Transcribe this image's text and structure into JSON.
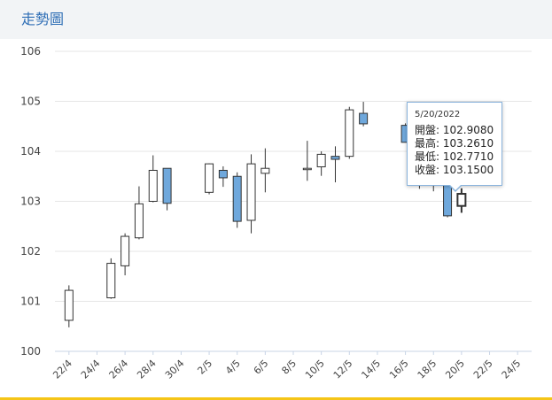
{
  "header": {
    "title": "走勢圖"
  },
  "tooltip": {
    "date": "5/20/2022",
    "open_label": "開盤: 102.9080",
    "high_label": "最高: 103.2610",
    "low_label": "最低: 102.7710",
    "close_label": "收盤: 103.1500"
  },
  "colors": {
    "up": "#ffffff",
    "down": "#6fa8dc",
    "wick": "#333333",
    "grid": "#e6e6e6",
    "title": "#2d6db5",
    "accent_line": "#f5c518"
  },
  "chart_data": {
    "type": "candlestick",
    "ylim": [
      100,
      106
    ],
    "yticks": [
      100,
      101,
      102,
      103,
      104,
      105,
      106
    ],
    "xlim_dates": [
      "2022-04-21",
      "2022-05-25"
    ],
    "xtick_labels": [
      "22/4",
      "24/4",
      "26/4",
      "28/4",
      "30/4",
      "2/5",
      "4/5",
      "6/5",
      "8/5",
      "10/5",
      "12/5",
      "14/5",
      "16/5",
      "18/5",
      "20/5",
      "22/5",
      "24/5"
    ],
    "xtick_dates": [
      "2022-04-22",
      "2022-04-24",
      "2022-04-26",
      "2022-04-28",
      "2022-04-30",
      "2022-05-02",
      "2022-05-04",
      "2022-05-06",
      "2022-05-08",
      "2022-05-10",
      "2022-05-12",
      "2022-05-14",
      "2022-05-16",
      "2022-05-18",
      "2022-05-20",
      "2022-05-22",
      "2022-05-24"
    ],
    "candles": [
      {
        "date": "2022-04-22",
        "open": 100.62,
        "high": 101.32,
        "low": 100.48,
        "close": 101.22
      },
      {
        "date": "2022-04-25",
        "open": 101.07,
        "high": 101.86,
        "low": 101.05,
        "close": 101.76
      },
      {
        "date": "2022-04-26",
        "open": 101.71,
        "high": 102.36,
        "low": 101.52,
        "close": 102.3
      },
      {
        "date": "2022-04-27",
        "open": 102.27,
        "high": 103.3,
        "low": 102.24,
        "close": 102.95
      },
      {
        "date": "2022-04-28",
        "open": 103.0,
        "high": 103.92,
        "low": 102.98,
        "close": 103.62
      },
      {
        "date": "2022-04-29",
        "open": 103.66,
        "high": 103.66,
        "low": 102.82,
        "close": 102.96
      },
      {
        "date": "2022-05-02",
        "open": 103.18,
        "high": 103.76,
        "low": 103.14,
        "close": 103.75
      },
      {
        "date": "2022-05-03",
        "open": 103.62,
        "high": 103.7,
        "low": 103.29,
        "close": 103.47
      },
      {
        "date": "2022-05-04",
        "open": 103.5,
        "high": 103.58,
        "low": 102.47,
        "close": 102.6
      },
      {
        "date": "2022-05-05",
        "open": 102.62,
        "high": 103.94,
        "low": 102.36,
        "close": 103.75
      },
      {
        "date": "2022-05-06",
        "open": 103.56,
        "high": 104.06,
        "low": 103.18,
        "close": 103.66
      },
      {
        "date": "2022-05-09",
        "open": 103.65,
        "high": 104.21,
        "low": 103.41,
        "close": 103.66
      },
      {
        "date": "2022-05-10",
        "open": 103.69,
        "high": 104.0,
        "low": 103.51,
        "close": 103.94
      },
      {
        "date": "2022-05-11",
        "open": 103.9,
        "high": 104.1,
        "low": 103.38,
        "close": 103.84
      },
      {
        "date": "2022-05-12",
        "open": 103.9,
        "high": 104.89,
        "low": 103.85,
        "close": 104.83
      },
      {
        "date": "2022-05-13",
        "open": 104.76,
        "high": 104.99,
        "low": 104.5,
        "close": 104.55
      },
      {
        "date": "2022-05-16",
        "open": 104.52,
        "high": 104.56,
        "low": 104.18,
        "close": 104.18
      },
      {
        "date": "2022-05-17",
        "open": 103.7,
        "high": 103.92,
        "low": 103.25,
        "close": 103.36
      },
      {
        "date": "2022-05-18",
        "open": 103.38,
        "high": 103.8,
        "low": 103.2,
        "close": 103.4
      },
      {
        "date": "2022-05-19",
        "open": 103.55,
        "high": 103.6,
        "low": 102.68,
        "close": 102.71
      },
      {
        "date": "2022-05-20",
        "open": 102.908,
        "high": 103.261,
        "low": 102.771,
        "close": 103.15
      }
    ]
  }
}
